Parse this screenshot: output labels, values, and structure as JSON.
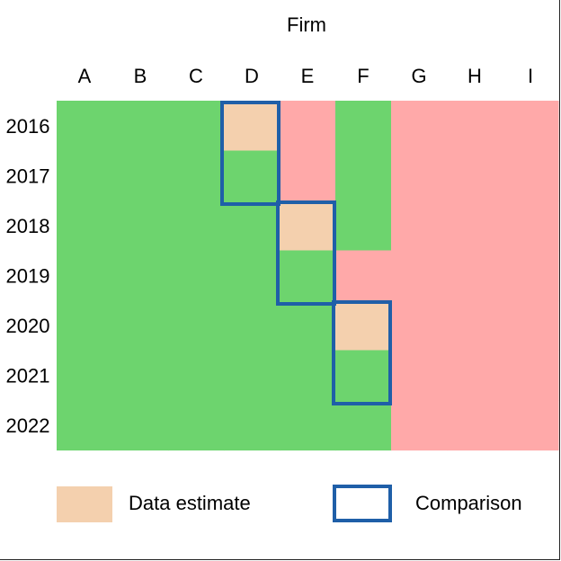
{
  "title": "Firm",
  "columns": [
    "A",
    "B",
    "C",
    "D",
    "E",
    "F",
    "G",
    "H",
    "I"
  ],
  "rows": [
    "2016",
    "2017",
    "2018",
    "2019",
    "2020",
    "2021",
    "2022"
  ],
  "grid": [
    [
      "green",
      "green",
      "green",
      "estimate",
      "red",
      "green",
      "red",
      "red",
      "red"
    ],
    [
      "green",
      "green",
      "green",
      "green",
      "red",
      "green",
      "red",
      "red",
      "red"
    ],
    [
      "green",
      "green",
      "green",
      "green",
      "estimate",
      "green",
      "red",
      "red",
      "red"
    ],
    [
      "green",
      "green",
      "green",
      "green",
      "green",
      "red",
      "red",
      "red",
      "red"
    ],
    [
      "green",
      "green",
      "green",
      "green",
      "green",
      "estimate",
      "red",
      "red",
      "red"
    ],
    [
      "green",
      "green",
      "green",
      "green",
      "green",
      "green",
      "red",
      "red",
      "red"
    ],
    [
      "green",
      "green",
      "green",
      "green",
      "green",
      "green",
      "red",
      "red",
      "red"
    ]
  ],
  "comparisons": [
    {
      "column": "D",
      "from_row": "2016",
      "to_row": "2017"
    },
    {
      "column": "E",
      "from_row": "2018",
      "to_row": "2019"
    },
    {
      "column": "F",
      "from_row": "2020",
      "to_row": "2021"
    }
  ],
  "colors": {
    "green": "#6dd46e",
    "red": "#ffa9a9",
    "estimate": "#f4d0ae",
    "comparison_border": "#1f5fa8"
  },
  "legend": {
    "estimate_label": "Data estimate",
    "comparison_label": "Comparison"
  }
}
